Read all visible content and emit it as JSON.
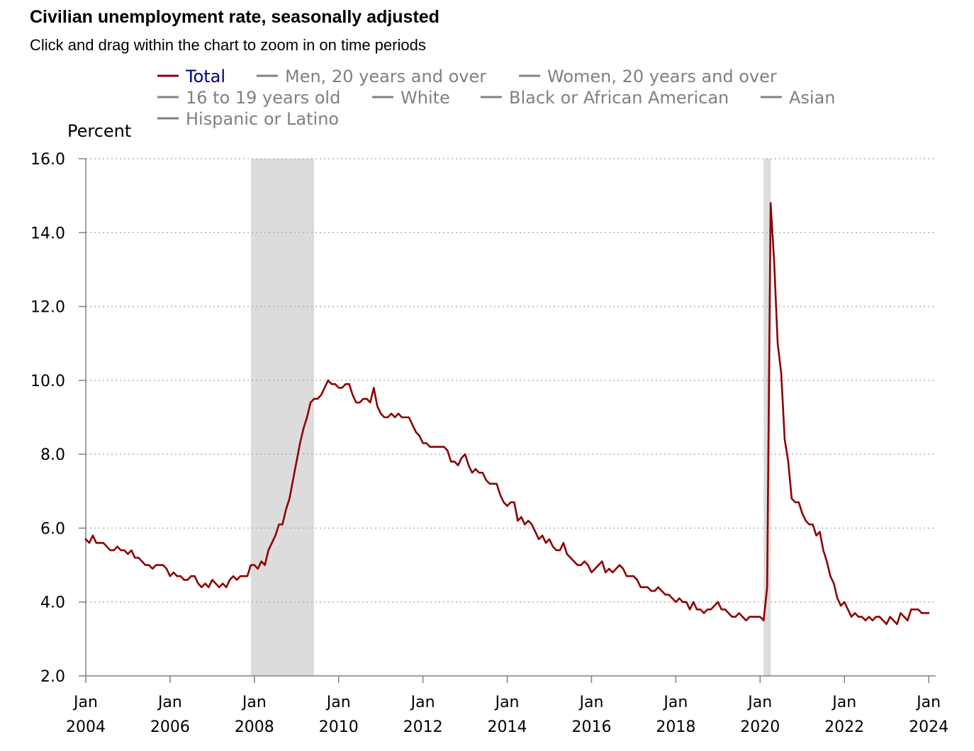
{
  "header": {
    "title": "Civilian unemployment rate, seasonally adjusted",
    "subtitle": "Click and drag within the chart to zoom in on time periods"
  },
  "colors": {
    "total_line": "#8b0000",
    "inactive_legend": "#808080",
    "active_legend_text": "#000080",
    "recession_band": "#dcdcdc",
    "grid": "#b0b0b0",
    "axis": "#808080"
  },
  "chart_data": {
    "type": "line",
    "title": "Civilian unemployment rate, seasonally adjusted",
    "subtitle": "Click and drag within the chart to zoom in on time periods",
    "ylabel": "Percent",
    "xlabel": "",
    "ylim": [
      2.0,
      16.0
    ],
    "xlim": [
      "2004-01",
      "2024-03"
    ],
    "grid": true,
    "y_ticks": [
      "16.0",
      "14.0",
      "12.0",
      "10.0",
      "8.0",
      "6.0",
      "4.0",
      "2.0"
    ],
    "y_tick_values": [
      16,
      14,
      12,
      10,
      8,
      6,
      4,
      2
    ],
    "x_ticks": [
      {
        "month": "Jan",
        "year": "2004"
      },
      {
        "month": "Jan",
        "year": "2006"
      },
      {
        "month": "Jan",
        "year": "2008"
      },
      {
        "month": "Jan",
        "year": "2010"
      },
      {
        "month": "Jan",
        "year": "2012"
      },
      {
        "month": "Jan",
        "year": "2014"
      },
      {
        "month": "Jan",
        "year": "2016"
      },
      {
        "month": "Jan",
        "year": "2018"
      },
      {
        "month": "Jan",
        "year": "2020"
      },
      {
        "month": "Jan",
        "year": "2022"
      },
      {
        "month": "Jan",
        "year": "2024"
      }
    ],
    "legend": [
      {
        "label": "Total",
        "active": true
      },
      {
        "label": "Men, 20 years and over",
        "active": false
      },
      {
        "label": "Women, 20 years and over",
        "active": false
      },
      {
        "label": "16 to 19 years old",
        "active": false
      },
      {
        "label": "White",
        "active": false
      },
      {
        "label": "Black or African American",
        "active": false
      },
      {
        "label": "Asian",
        "active": false
      },
      {
        "label": "Hispanic or Latino",
        "active": false
      }
    ],
    "recessions": [
      {
        "start": "2007-12",
        "end": "2009-06"
      },
      {
        "start": "2020-02",
        "end": "2020-04"
      }
    ],
    "series": [
      {
        "name": "Total",
        "start": "2004-01",
        "values": [
          5.7,
          5.6,
          5.8,
          5.6,
          5.6,
          5.6,
          5.5,
          5.4,
          5.4,
          5.5,
          5.4,
          5.4,
          5.3,
          5.4,
          5.2,
          5.2,
          5.1,
          5.0,
          5.0,
          4.9,
          5.0,
          5.0,
          5.0,
          4.9,
          4.7,
          4.8,
          4.7,
          4.7,
          4.6,
          4.6,
          4.7,
          4.7,
          4.5,
          4.4,
          4.5,
          4.4,
          4.6,
          4.5,
          4.4,
          4.5,
          4.4,
          4.6,
          4.7,
          4.6,
          4.7,
          4.7,
          4.7,
          5.0,
          5.0,
          4.9,
          5.1,
          5.0,
          5.4,
          5.6,
          5.8,
          6.1,
          6.1,
          6.5,
          6.8,
          7.3,
          7.8,
          8.3,
          8.7,
          9.0,
          9.4,
          9.5,
          9.5,
          9.6,
          9.8,
          10.0,
          9.9,
          9.9,
          9.8,
          9.8,
          9.9,
          9.9,
          9.6,
          9.4,
          9.4,
          9.5,
          9.5,
          9.4,
          9.8,
          9.3,
          9.1,
          9.0,
          9.0,
          9.1,
          9.0,
          9.1,
          9.0,
          9.0,
          9.0,
          8.8,
          8.6,
          8.5,
          8.3,
          8.3,
          8.2,
          8.2,
          8.2,
          8.2,
          8.2,
          8.1,
          7.8,
          7.8,
          7.7,
          7.9,
          8.0,
          7.7,
          7.5,
          7.6,
          7.5,
          7.5,
          7.3,
          7.2,
          7.2,
          7.2,
          6.9,
          6.7,
          6.6,
          6.7,
          6.7,
          6.2,
          6.3,
          6.1,
          6.2,
          6.1,
          5.9,
          5.7,
          5.8,
          5.6,
          5.7,
          5.5,
          5.4,
          5.4,
          5.6,
          5.3,
          5.2,
          5.1,
          5.0,
          5.0,
          5.1,
          5.0,
          4.8,
          4.9,
          5.0,
          5.1,
          4.8,
          4.9,
          4.8,
          4.9,
          5.0,
          4.9,
          4.7,
          4.7,
          4.7,
          4.6,
          4.4,
          4.4,
          4.4,
          4.3,
          4.3,
          4.4,
          4.3,
          4.2,
          4.2,
          4.1,
          4.0,
          4.1,
          4.0,
          4.0,
          3.8,
          4.0,
          3.8,
          3.8,
          3.7,
          3.8,
          3.8,
          3.9,
          4.0,
          3.8,
          3.8,
          3.7,
          3.6,
          3.6,
          3.7,
          3.6,
          3.5,
          3.6,
          3.6,
          3.6,
          3.6,
          3.5,
          4.4,
          14.8,
          13.2,
          11.0,
          10.2,
          8.4,
          7.8,
          6.8,
          6.7,
          6.7,
          6.4,
          6.2,
          6.1,
          6.1,
          5.8,
          5.9,
          5.4,
          5.1,
          4.7,
          4.5,
          4.1,
          3.9,
          4.0,
          3.8,
          3.6,
          3.7,
          3.6,
          3.6,
          3.5,
          3.6,
          3.5,
          3.6,
          3.6,
          3.5,
          3.4,
          3.6,
          3.5,
          3.4,
          3.7,
          3.6,
          3.5,
          3.8,
          3.8,
          3.8,
          3.7,
          3.7,
          3.7
        ]
      }
    ]
  }
}
